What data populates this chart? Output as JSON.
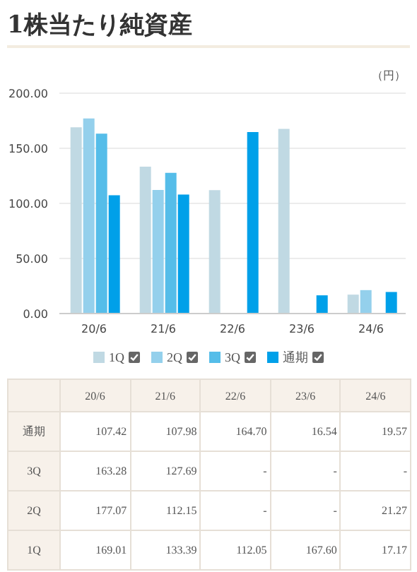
{
  "chart_data": {
    "type": "bar",
    "title": "1株当たり純資産",
    "ylabel": "（円）",
    "categories": [
      "20/6",
      "21/6",
      "22/6",
      "23/6",
      "24/6"
    ],
    "series": [
      {
        "name": "1Q",
        "color": "#c0d9e3",
        "values": [
          169.01,
          133.39,
          112.05,
          167.6,
          17.17
        ],
        "value_labels": [
          "169.01",
          "133.39",
          "112.05",
          "167.60",
          "17.17"
        ]
      },
      {
        "name": "2Q",
        "color": "#94d0ec",
        "values": [
          177.07,
          112.15,
          null,
          null,
          21.27
        ],
        "value_labels": [
          "177.07",
          "112.15",
          "-",
          "-",
          "21.27"
        ]
      },
      {
        "name": "3Q",
        "color": "#55bde9",
        "values": [
          163.28,
          127.69,
          null,
          null,
          null
        ],
        "value_labels": [
          "163.28",
          "127.69",
          "-",
          "-",
          "-"
        ]
      },
      {
        "name": "通期",
        "color": "#00a0e9",
        "values": [
          107.42,
          107.98,
          164.7,
          16.54,
          19.57
        ],
        "value_labels": [
          "107.42",
          "107.98",
          "164.70",
          "16.54",
          "19.57"
        ]
      }
    ],
    "ylim": [
      0,
      200
    ],
    "yticks": [
      {
        "value": 0,
        "label": "0.00"
      },
      {
        "value": 50,
        "label": "50.00"
      },
      {
        "value": 100,
        "label": "100.00"
      },
      {
        "value": 150,
        "label": "150.00"
      },
      {
        "value": 200,
        "label": "200.00"
      }
    ],
    "grid": "y",
    "legend": "bottom"
  }
}
